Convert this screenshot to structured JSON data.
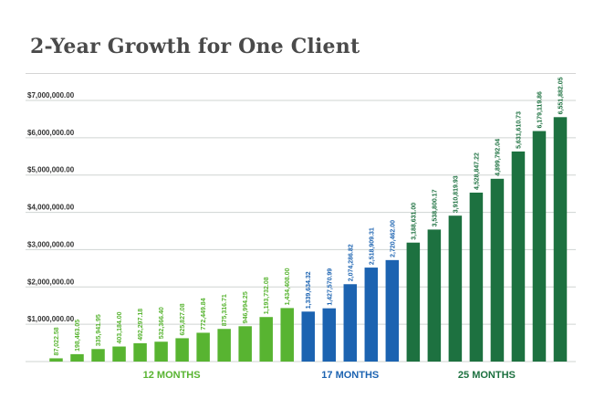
{
  "title": "2-Year Growth for One Client",
  "colors": {
    "light_green": "#58b431",
    "blue": "#1c63b1",
    "dark_green": "#1d7140",
    "grid": "#cfd4d2",
    "title": "#4a4a4a"
  },
  "chart_data": {
    "type": "bar",
    "title": "2-Year Growth for One Client",
    "xlabel": "",
    "ylabel": "",
    "ylim": [
      0,
      7000000
    ],
    "yticks": [
      {
        "value": 1000000,
        "label": "$1,000,000.00"
      },
      {
        "value": 2000000,
        "label": "$2,000,000.00"
      },
      {
        "value": 3000000,
        "label": "$3,000,000.00"
      },
      {
        "value": 4000000,
        "label": "$4,000,000.00"
      },
      {
        "value": 5000000,
        "label": "$5,000,000.00"
      },
      {
        "value": 6000000,
        "label": "$6,000,000.00"
      },
      {
        "value": 7000000,
        "label": "$7,000,000.00"
      }
    ],
    "grid": true,
    "legend": "none",
    "bars": [
      {
        "value": 87022.58,
        "label": "87,022.58",
        "group": 0
      },
      {
        "value": 198463.05,
        "label": "198,463.05",
        "group": 0
      },
      {
        "value": 335941.95,
        "label": "335,941.95",
        "group": 0
      },
      {
        "value": 403184.0,
        "label": "403,184.00",
        "group": 0
      },
      {
        "value": 492297.18,
        "label": "492,297.18",
        "group": 0
      },
      {
        "value": 532366.4,
        "label": "532,366.40",
        "group": 0
      },
      {
        "value": 625827.08,
        "label": "625,827.08",
        "group": 0
      },
      {
        "value": 772449.84,
        "label": "772,449.84",
        "group": 0
      },
      {
        "value": 875316.71,
        "label": "875,316.71",
        "group": 0
      },
      {
        "value": 946994.25,
        "label": "946,994.25",
        "group": 0
      },
      {
        "value": 1193732.08,
        "label": "1,193,732.08",
        "group": 0
      },
      {
        "value": 1434408.0,
        "label": "1,434,408.00",
        "group": 0
      },
      {
        "value": 1339634.32,
        "label": "1,339,634.32",
        "group": 1
      },
      {
        "value": 1427570.99,
        "label": "1,427,570.99",
        "group": 1
      },
      {
        "value": 2074286.82,
        "label": "2,074,286.82",
        "group": 1
      },
      {
        "value": 2518909.31,
        "label": "2,518,909.31",
        "group": 1
      },
      {
        "value": 2720462.0,
        "label": "2,720,462.00",
        "group": 1
      },
      {
        "value": 3188631.0,
        "label": "3,188,631.00",
        "group": 2
      },
      {
        "value": 3538800.17,
        "label": "3,538,800.17",
        "group": 2
      },
      {
        "value": 3910819.93,
        "label": "3,910,819.93",
        "group": 2
      },
      {
        "value": 4528847.22,
        "label": "4,528,847.22",
        "group": 2
      },
      {
        "value": 4899792.04,
        "label": "4,899,792.04",
        "group": 2
      },
      {
        "value": 5631610.73,
        "label": "5,631,610.73",
        "group": 2
      },
      {
        "value": 6179119.86,
        "label": "6,179,119.86",
        "group": 2
      },
      {
        "value": 6551882.05,
        "label": "6,551,882.05",
        "group": 2
      }
    ],
    "groups": [
      {
        "name": "12 MONTHS",
        "color": "#58b431"
      },
      {
        "name": "17 MONTHS",
        "color": "#1c63b1"
      },
      {
        "name": "25 MONTHS",
        "color": "#1d7140"
      }
    ]
  }
}
